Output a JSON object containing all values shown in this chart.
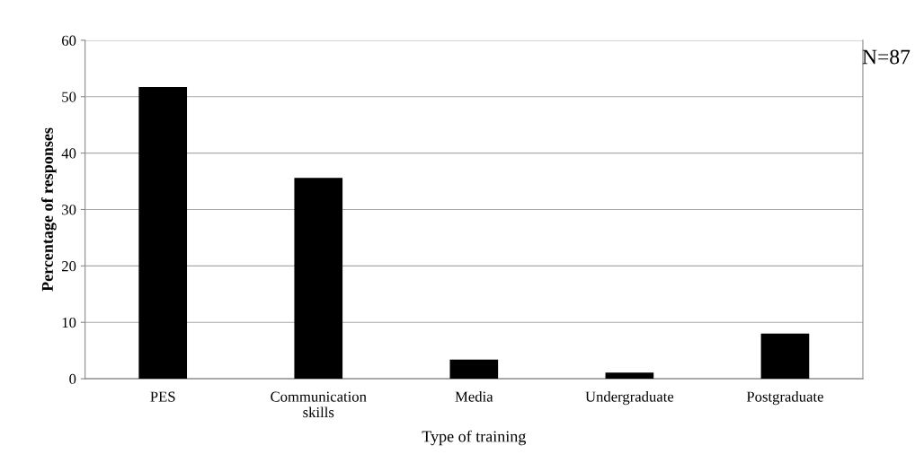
{
  "chart_data": {
    "type": "bar",
    "xlabel": "Type of training",
    "ylabel": "Percentage of responses",
    "categories": [
      "PES",
      "Communication\nskills",
      "Media",
      "Undergraduate",
      "Postgraduate"
    ],
    "values": [
      51.7,
      35.6,
      3.4,
      1.1,
      8.0
    ],
    "color": "#000000",
    "ylim": [
      0,
      60
    ],
    "yticks": [
      0,
      10,
      20,
      30,
      40,
      50,
      60
    ],
    "grid": "y",
    "legend": false,
    "annotations": [
      "N=87"
    ]
  }
}
